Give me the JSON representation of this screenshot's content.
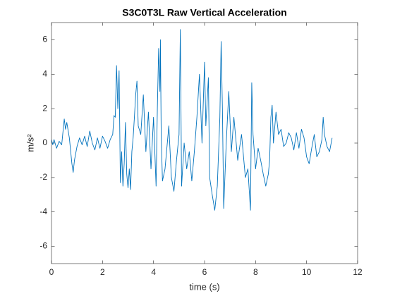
{
  "chart_data": {
    "type": "line",
    "title": "S3C0T3L Raw Vertical Acceleration",
    "x_label": "time (s)",
    "y_label": "m/s²",
    "xlim": [
      0,
      12
    ],
    "xticks": [
      0,
      2,
      4,
      6,
      8,
      10,
      12
    ],
    "ylim": [
      -7,
      7
    ],
    "yticks": [
      -6,
      -4,
      -2,
      0,
      2,
      4,
      6
    ],
    "grid": false,
    "x": [
      0,
      0.05,
      0.1,
      0.2,
      0.3,
      0.4,
      0.5,
      0.55,
      0.6,
      0.7,
      0.8,
      0.85,
      0.9,
      1.0,
      1.1,
      1.2,
      1.3,
      1.4,
      1.5,
      1.6,
      1.7,
      1.8,
      1.9,
      2.0,
      2.1,
      2.2,
      2.3,
      2.4,
      2.45,
      2.5,
      2.55,
      2.6,
      2.65,
      2.7,
      2.75,
      2.8,
      2.85,
      2.9,
      2.95,
      3.0,
      3.05,
      3.1,
      3.15,
      3.2,
      3.25,
      3.3,
      3.35,
      3.4,
      3.5,
      3.6,
      3.7,
      3.8,
      3.9,
      3.95,
      4.0,
      4.05,
      4.1,
      4.15,
      4.2,
      4.25,
      4.27,
      4.3,
      4.35,
      4.45,
      4.6,
      4.7,
      4.8,
      4.9,
      5.0,
      5.05,
      5.1,
      5.2,
      5.3,
      5.4,
      5.5,
      5.6,
      5.7,
      5.8,
      5.9,
      6.0,
      6.05,
      6.15,
      6.2,
      6.3,
      6.4,
      6.5,
      6.6,
      6.65,
      6.7,
      6.75,
      6.85,
      6.95,
      7.05,
      7.15,
      7.3,
      7.45,
      7.6,
      7.7,
      7.8,
      7.85,
      7.9,
      8.0,
      8.1,
      8.2,
      8.3,
      8.4,
      8.5,
      8.55,
      8.6,
      8.65,
      8.7,
      8.8,
      8.9,
      9.0,
      9.1,
      9.2,
      9.3,
      9.4,
      9.5,
      9.6,
      9.7,
      9.8,
      9.9,
      10.0,
      10.1,
      10.2,
      10.3,
      10.4,
      10.5,
      10.6,
      10.65,
      10.7,
      10.8,
      10.9,
      11.0
    ],
    "series": [
      {
        "color": "#0072bd",
        "values": [
          0.2,
          -0.1,
          0.2,
          -0.3,
          0.1,
          -0.1,
          1.4,
          0.8,
          1.2,
          0.3,
          -1.2,
          -1.7,
          -1.0,
          -0.2,
          0.3,
          -0.1,
          0.4,
          -0.2,
          0.7,
          0.0,
          -0.4,
          0.3,
          -0.3,
          0.4,
          0.1,
          -0.3,
          0.2,
          0.5,
          1.6,
          1.5,
          4.5,
          2.0,
          4.2,
          -2.3,
          -0.5,
          -2.5,
          -1.2,
          1.2,
          -1.8,
          -2.6,
          -1.5,
          -2.7,
          -0.5,
          0.3,
          1.5,
          2.8,
          3.6,
          1.0,
          0.5,
          2.8,
          -0.5,
          1.8,
          -1.5,
          0.0,
          1.5,
          -0.5,
          -2.5,
          2.0,
          5.5,
          3.0,
          6.0,
          0.5,
          -2.2,
          -1.5,
          1.0,
          -2.0,
          -2.8,
          -1.0,
          0.5,
          6.6,
          -2.5,
          0.0,
          -1.5,
          -0.5,
          -2.2,
          -0.5,
          1.5,
          4.0,
          0.0,
          4.7,
          1.0,
          3.8,
          -2.0,
          -3.0,
          -3.9,
          -2.5,
          1.5,
          5.9,
          2.0,
          -3.8,
          0.0,
          3.0,
          -0.5,
          1.5,
          -1.0,
          0.5,
          -2.0,
          -1.5,
          -3.9,
          3.5,
          0.5,
          -1.5,
          -0.3,
          -1.0,
          -1.8,
          -2.5,
          -1.8,
          -1.0,
          1.5,
          2.2,
          0.0,
          1.8,
          0.5,
          0.8,
          -0.2,
          0.0,
          0.6,
          0.3,
          -0.4,
          0.6,
          -0.3,
          0.8,
          0.3,
          -0.8,
          -1.2,
          -0.3,
          0.5,
          -0.8,
          -0.5,
          0.2,
          1.5,
          0.5,
          -0.2,
          -0.5,
          0.3
        ]
      }
    ]
  }
}
